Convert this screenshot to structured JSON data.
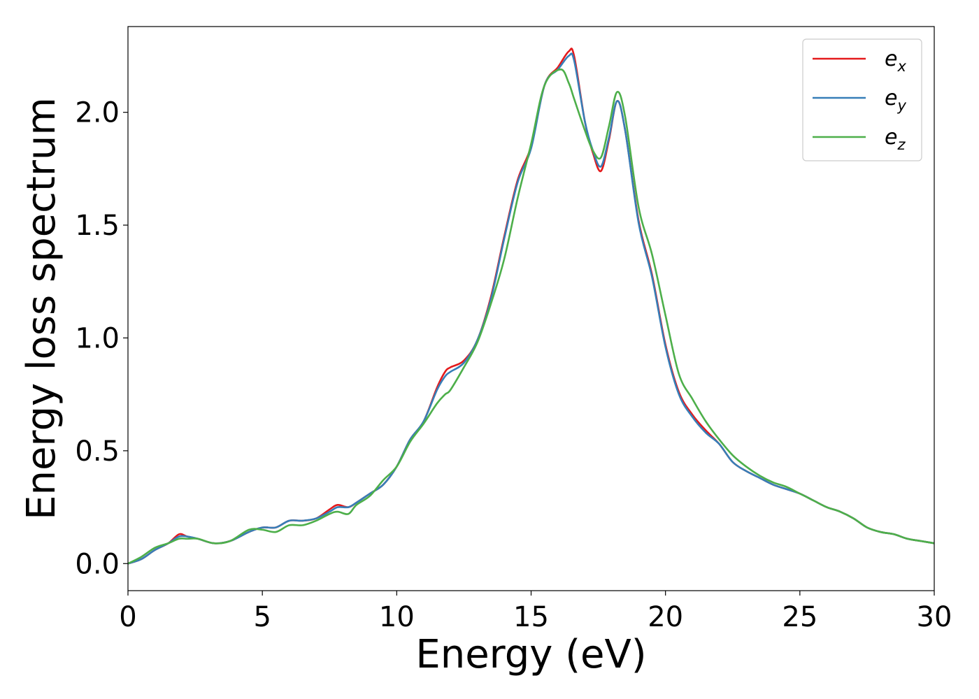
{
  "chart_data": {
    "type": "line",
    "title": "",
    "xlabel": "Energy (eV)",
    "ylabel": "Energy loss spectrum",
    "xlim": [
      0,
      30
    ],
    "ylim": [
      -0.12,
      2.38
    ],
    "xticks": [
      0,
      5,
      10,
      15,
      20,
      25,
      30
    ],
    "yticks": [
      0.0,
      0.5,
      1.0,
      1.5,
      2.0
    ],
    "ytick_labels": [
      "0.0",
      "0.5",
      "1.0",
      "1.5",
      "2.0"
    ],
    "grid": false,
    "legend_position": "top-right",
    "series": [
      {
        "name": "e",
        "subscript": "x",
        "color": "#e41a1c",
        "x": [
          0,
          0.5,
          1,
          1.5,
          1.9,
          2.2,
          2.6,
          3.2,
          3.8,
          4.5,
          5,
          5.5,
          6,
          6.5,
          7,
          7.5,
          7.8,
          8.2,
          8.5,
          9,
          9.5,
          10,
          10.5,
          11,
          11.5,
          11.8,
          12,
          12.5,
          13,
          13.5,
          14,
          14.5,
          15,
          15.5,
          16,
          16.4,
          16.6,
          17,
          17.3,
          17.6,
          17.9,
          18.2,
          18.5,
          19,
          19.5,
          20,
          20.5,
          21,
          21.5,
          22,
          22.5,
          23,
          23.5,
          24,
          24.5,
          25,
          25.5,
          26,
          26.5,
          27,
          27.5,
          28,
          28.5,
          29,
          29.5,
          30
        ],
        "y": [
          0.0,
          0.02,
          0.06,
          0.09,
          0.13,
          0.12,
          0.11,
          0.09,
          0.1,
          0.14,
          0.16,
          0.16,
          0.19,
          0.19,
          0.2,
          0.24,
          0.26,
          0.25,
          0.27,
          0.31,
          0.35,
          0.43,
          0.55,
          0.63,
          0.78,
          0.85,
          0.87,
          0.9,
          0.99,
          1.18,
          1.45,
          1.7,
          1.85,
          2.12,
          2.2,
          2.27,
          2.25,
          1.96,
          1.82,
          1.74,
          1.88,
          2.05,
          1.92,
          1.52,
          1.28,
          0.97,
          0.76,
          0.66,
          0.59,
          0.53,
          0.45,
          0.41,
          0.38,
          0.35,
          0.33,
          0.31,
          0.28,
          0.25,
          0.23,
          0.2,
          0.16,
          0.14,
          0.13,
          0.11,
          0.1,
          0.09
        ]
      },
      {
        "name": "e",
        "subscript": "y",
        "color": "#377eb8",
        "x": [
          0,
          0.5,
          1,
          1.5,
          1.9,
          2.2,
          2.6,
          3.2,
          3.8,
          4.5,
          5,
          5.5,
          6,
          6.5,
          7,
          7.5,
          7.8,
          8.2,
          8.5,
          9,
          9.5,
          10,
          10.5,
          11,
          11.5,
          11.8,
          12,
          12.5,
          13,
          13.5,
          14,
          14.5,
          15,
          15.5,
          16,
          16.4,
          16.6,
          17,
          17.3,
          17.6,
          17.9,
          18.2,
          18.5,
          19,
          19.5,
          20,
          20.5,
          21,
          21.5,
          22,
          22.5,
          23,
          23.5,
          24,
          24.5,
          25,
          25.5,
          26,
          26.5,
          27,
          27.5,
          28,
          28.5,
          29,
          29.5,
          30
        ],
        "y": [
          0.0,
          0.02,
          0.06,
          0.09,
          0.12,
          0.12,
          0.11,
          0.09,
          0.1,
          0.14,
          0.16,
          0.16,
          0.19,
          0.19,
          0.2,
          0.23,
          0.25,
          0.25,
          0.27,
          0.31,
          0.35,
          0.43,
          0.55,
          0.63,
          0.77,
          0.83,
          0.85,
          0.89,
          0.99,
          1.17,
          1.44,
          1.69,
          1.84,
          2.12,
          2.19,
          2.25,
          2.23,
          1.96,
          1.83,
          1.76,
          1.89,
          2.05,
          1.92,
          1.51,
          1.27,
          0.96,
          0.75,
          0.65,
          0.58,
          0.53,
          0.45,
          0.41,
          0.38,
          0.35,
          0.33,
          0.31,
          0.28,
          0.25,
          0.23,
          0.2,
          0.16,
          0.14,
          0.13,
          0.11,
          0.1,
          0.09
        ]
      },
      {
        "name": "e",
        "subscript": "z",
        "color": "#4daf4a",
        "x": [
          0,
          0.5,
          1,
          1.5,
          1.9,
          2.2,
          2.6,
          3.2,
          3.8,
          4.5,
          5,
          5.5,
          6,
          6.5,
          7,
          7.5,
          7.8,
          8.2,
          8.5,
          9,
          9.5,
          10,
          10.5,
          11,
          11.5,
          11.8,
          12,
          12.5,
          13,
          13.5,
          14,
          14.5,
          15,
          15.5,
          16.1,
          16.4,
          16.6,
          17,
          17.3,
          17.6,
          17.9,
          18.2,
          18.5,
          19,
          19.5,
          20,
          20.5,
          21,
          21.5,
          22,
          22.5,
          23,
          23.5,
          24,
          24.5,
          25,
          25.5,
          26,
          26.5,
          27,
          27.5,
          28,
          28.5,
          29,
          29.5,
          30
        ],
        "y": [
          0.0,
          0.03,
          0.07,
          0.09,
          0.11,
          0.11,
          0.11,
          0.09,
          0.1,
          0.15,
          0.15,
          0.14,
          0.17,
          0.17,
          0.19,
          0.22,
          0.23,
          0.22,
          0.26,
          0.3,
          0.37,
          0.43,
          0.54,
          0.62,
          0.71,
          0.75,
          0.77,
          0.87,
          0.98,
          1.15,
          1.35,
          1.62,
          1.86,
          2.12,
          2.19,
          2.13,
          2.06,
          1.92,
          1.83,
          1.8,
          1.94,
          2.09,
          1.98,
          1.58,
          1.37,
          1.1,
          0.84,
          0.73,
          0.63,
          0.55,
          0.48,
          0.43,
          0.39,
          0.36,
          0.34,
          0.31,
          0.28,
          0.25,
          0.23,
          0.2,
          0.16,
          0.14,
          0.13,
          0.11,
          0.1,
          0.09
        ]
      }
    ]
  }
}
